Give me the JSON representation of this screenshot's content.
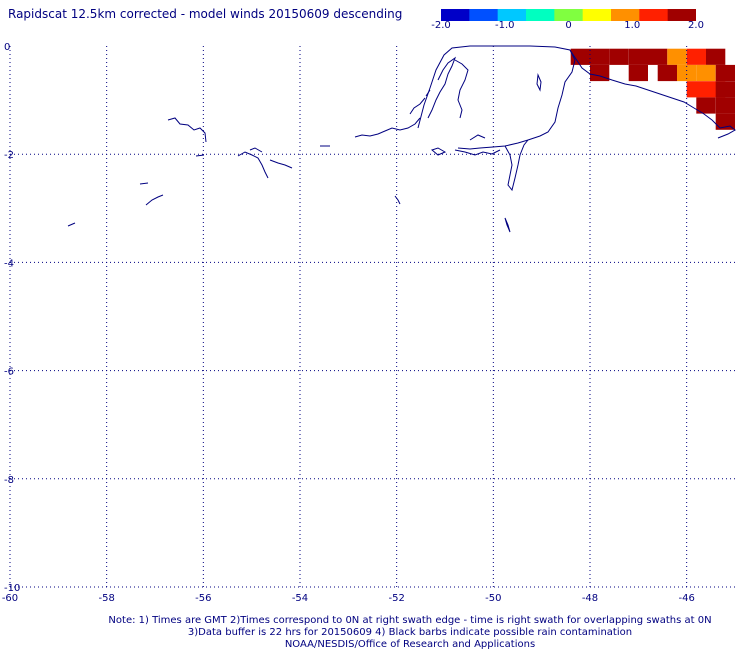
{
  "title": "Rapidscat 12.5km corrected - model winds 20150609 descending",
  "colorbar": {
    "min": -2.0,
    "max": 2.0,
    "ticks": [
      {
        "value": -2.0,
        "label": "-2.0"
      },
      {
        "value": -1.0,
        "label": "-1.0"
      },
      {
        "value": 0,
        "label": "0"
      },
      {
        "value": 1.0,
        "label": "1.0"
      },
      {
        "value": 2.0,
        "label": "2.0"
      }
    ],
    "colors": [
      "#0000c8",
      "#0050ff",
      "#00c8ff",
      "#00ffc0",
      "#80ff40",
      "#ffff00",
      "#ff9000",
      "#ff2000",
      "#a00000"
    ]
  },
  "map": {
    "lon_range": [
      -60,
      -45
    ],
    "lat_range": [
      -10,
      0
    ],
    "lon_ticks": [
      "-60",
      "-58",
      "-56",
      "-54",
      "-52",
      "-50",
      "-48",
      "-46"
    ],
    "lat_ticks": [
      "0",
      "-2",
      "-4",
      "-6",
      "-8",
      "-10"
    ],
    "grid_color": "#000080",
    "coast_color": "#000080"
  },
  "chart_data": {
    "type": "heatmap",
    "title": "Rapidscat 12.5km corrected - model winds 20150609 descending",
    "xlabel": "",
    "ylabel": "",
    "xlim": [
      -60,
      -45
    ],
    "ylim": [
      -10,
      0
    ],
    "cells": [
      {
        "lon": -48.2,
        "lat": -0.2,
        "value": 2.0
      },
      {
        "lon": -47.8,
        "lat": -0.2,
        "value": 2.0
      },
      {
        "lon": -47.4,
        "lat": -0.2,
        "value": 2.0
      },
      {
        "lon": -47.0,
        "lat": -0.2,
        "value": 2.0
      },
      {
        "lon": -46.6,
        "lat": -0.2,
        "value": 2.0
      },
      {
        "lon": -46.2,
        "lat": -0.2,
        "value": 0.8
      },
      {
        "lon": -45.8,
        "lat": -0.2,
        "value": 1.3
      },
      {
        "lon": -45.4,
        "lat": -0.2,
        "value": 1.7
      },
      {
        "lon": -47.8,
        "lat": -0.5,
        "value": 2.0
      },
      {
        "lon": -47.0,
        "lat": -0.5,
        "value": 2.0
      },
      {
        "lon": -46.4,
        "lat": -0.5,
        "value": 1.9
      },
      {
        "lon": -46.0,
        "lat": -0.5,
        "value": 1.0
      },
      {
        "lon": -45.6,
        "lat": -0.5,
        "value": 0.9
      },
      {
        "lon": -45.2,
        "lat": -0.5,
        "value": 1.6
      },
      {
        "lon": -45.8,
        "lat": -0.8,
        "value": 1.4
      },
      {
        "lon": -45.4,
        "lat": -0.8,
        "value": 1.5
      },
      {
        "lon": -45.2,
        "lat": -0.8,
        "value": 1.9
      },
      {
        "lon": -45.6,
        "lat": -1.1,
        "value": 1.6
      },
      {
        "lon": -45.2,
        "lat": -1.1,
        "value": 2.0
      },
      {
        "lon": -45.2,
        "lat": -1.4,
        "value": 2.0
      }
    ]
  },
  "notes": [
    "Note: 1) Times are GMT 2)Times correspond to 0N at right swath edge - time is right swath for overlapping swaths at 0N",
    "3)Data buffer is 22 hrs for 20150609 4) Black barbs indicate possible rain contamination",
    "NOAA/NESDIS/Office of Research and Applications"
  ]
}
